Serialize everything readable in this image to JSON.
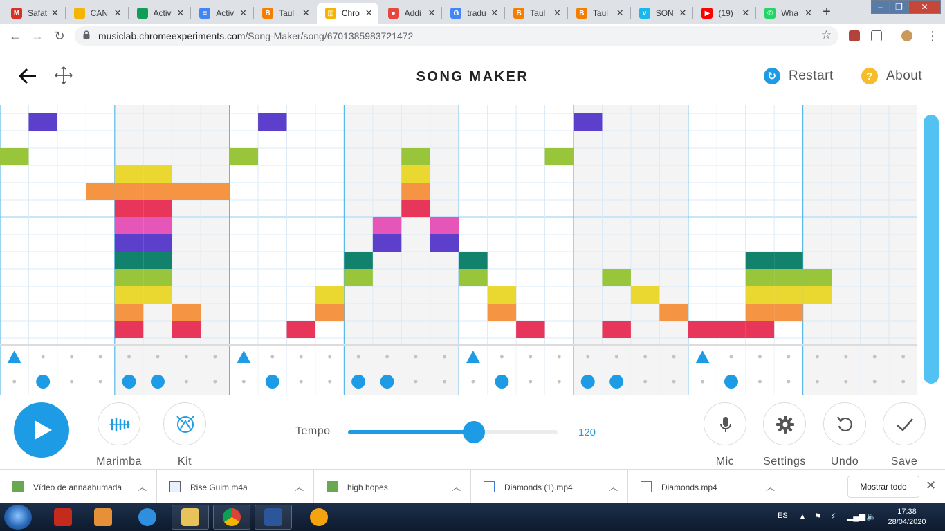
{
  "browser": {
    "tabs": [
      {
        "title": "Safat",
        "icon": "gmail-icon",
        "color": "#d93025",
        "glyph": "M",
        "active": false
      },
      {
        "title": "CAN",
        "icon": "drive-icon",
        "color": "#f4b400",
        "glyph": "",
        "active": false
      },
      {
        "title": "Activ",
        "icon": "drive-icon",
        "color": "#0f9d58",
        "glyph": "",
        "active": false
      },
      {
        "title": "Activ",
        "icon": "docs-icon",
        "color": "#4285f4",
        "glyph": "≡",
        "active": false
      },
      {
        "title": "Taul",
        "icon": "blogger-icon",
        "color": "#f57d00",
        "glyph": "B",
        "active": false
      },
      {
        "title": "Chro",
        "icon": "chrome-music-lab-icon",
        "color": "#f4b400",
        "glyph": "▥",
        "active": true
      },
      {
        "title": "Addi",
        "icon": "screencastify-icon",
        "color": "#e8453c",
        "glyph": "●",
        "active": false
      },
      {
        "title": "tradu",
        "icon": "google-icon",
        "color": "#4285f4",
        "glyph": "G",
        "active": false
      },
      {
        "title": "Taul",
        "icon": "blogger-icon",
        "color": "#f57d00",
        "glyph": "B",
        "active": false
      },
      {
        "title": "Taul",
        "icon": "blogger-icon",
        "color": "#f57d00",
        "glyph": "B",
        "active": false
      },
      {
        "title": "SON",
        "icon": "vimeo-icon",
        "color": "#1ab7ea",
        "glyph": "v",
        "active": false
      },
      {
        "title": "(19)",
        "icon": "youtube-icon",
        "color": "#ff0000",
        "glyph": "▶",
        "active": false
      },
      {
        "title": "Wha",
        "icon": "whatsapp-icon",
        "color": "#25d366",
        "glyph": "✆",
        "active": false
      }
    ],
    "url_host": "musiclab.chromeexperiments.com",
    "url_path": "/Song-Maker/song/6701385983721472"
  },
  "app": {
    "title": "SONG MAKER",
    "restart_label": "Restart",
    "about_label": "About",
    "restart_icon_glyph": "↻",
    "about_icon_glyph": "?"
  },
  "grid": {
    "columns": 32,
    "melody_rows": 14,
    "bar_length": 4,
    "note_colors": [
      "#e8365b",
      "#f59443",
      "#ead730",
      "#98c53a",
      "#12826c",
      "#5c3fcb",
      "#e556b8",
      "#e8365b",
      "#f59443",
      "#ead730",
      "#98c53a",
      "#12826c",
      "#5c3fcb",
      "#e556b8"
    ],
    "melody_notes": [
      [
        1,
        12
      ],
      [
        0,
        10
      ],
      [
        3,
        8
      ],
      [
        4,
        0
      ],
      [
        4,
        1
      ],
      [
        4,
        2
      ],
      [
        4,
        3
      ],
      [
        4,
        4
      ],
      [
        4,
        5
      ],
      [
        4,
        6
      ],
      [
        4,
        7
      ],
      [
        4,
        8
      ],
      [
        4,
        9
      ],
      [
        5,
        2
      ],
      [
        5,
        3
      ],
      [
        5,
        4
      ],
      [
        5,
        5
      ],
      [
        5,
        6
      ],
      [
        5,
        7
      ],
      [
        5,
        8
      ],
      [
        5,
        9
      ],
      [
        6,
        0
      ],
      [
        6,
        1
      ],
      [
        6,
        8
      ],
      [
        7,
        8
      ],
      [
        8,
        10
      ],
      [
        9,
        12
      ],
      [
        10,
        0
      ],
      [
        11,
        1
      ],
      [
        11,
        2
      ],
      [
        12,
        3
      ],
      [
        12,
        4
      ],
      [
        13,
        5
      ],
      [
        13,
        6
      ],
      [
        14,
        7
      ],
      [
        14,
        8
      ],
      [
        14,
        9
      ],
      [
        14,
        10
      ],
      [
        15,
        5
      ],
      [
        15,
        6
      ],
      [
        16,
        3
      ],
      [
        16,
        4
      ],
      [
        17,
        1
      ],
      [
        17,
        2
      ],
      [
        18,
        0
      ],
      [
        19,
        10
      ],
      [
        20,
        12
      ],
      [
        21,
        3
      ],
      [
        21,
        0
      ],
      [
        22,
        2
      ],
      [
        23,
        1
      ],
      [
        24,
        0
      ],
      [
        25,
        0
      ],
      [
        26,
        0
      ],
      [
        26,
        1
      ],
      [
        26,
        2
      ],
      [
        26,
        3
      ],
      [
        26,
        4
      ],
      [
        27,
        1
      ],
      [
        27,
        2
      ],
      [
        27,
        3
      ],
      [
        28,
        3
      ],
      [
        28,
        2
      ],
      [
        27,
        4
      ]
    ],
    "rhythm_top": [
      0,
      8,
      16,
      24
    ],
    "rhythm_bottom": [
      1,
      4,
      5,
      9,
      12,
      13,
      17,
      20,
      21,
      25
    ],
    "accent_color": "#1d9ce5"
  },
  "controls": {
    "instrument_label": "Marimba",
    "kit_label": "Kit",
    "tempo_label": "Tempo",
    "tempo_value": "120",
    "tempo_min": 0,
    "tempo_max": 200,
    "mic_label": "Mic",
    "settings_label": "Settings",
    "undo_label": "Undo",
    "save_label": "Save"
  },
  "downloads": {
    "items": [
      {
        "name": "Vídeo de annaahumada",
        "icon": "video-file-icon"
      },
      {
        "name": "Rise Guim.m4a",
        "icon": "audio-file-icon"
      },
      {
        "name": "high hopes",
        "icon": "video-file-icon"
      },
      {
        "name": "Diamonds (1).mp4",
        "icon": "media-file-icon"
      },
      {
        "name": "Diamonds.mp4",
        "icon": "media-file-icon"
      }
    ],
    "show_all_label": "Mostrar todo"
  },
  "taskbar": {
    "language": "ES",
    "time": "17:38",
    "date": "28/04/2020"
  }
}
